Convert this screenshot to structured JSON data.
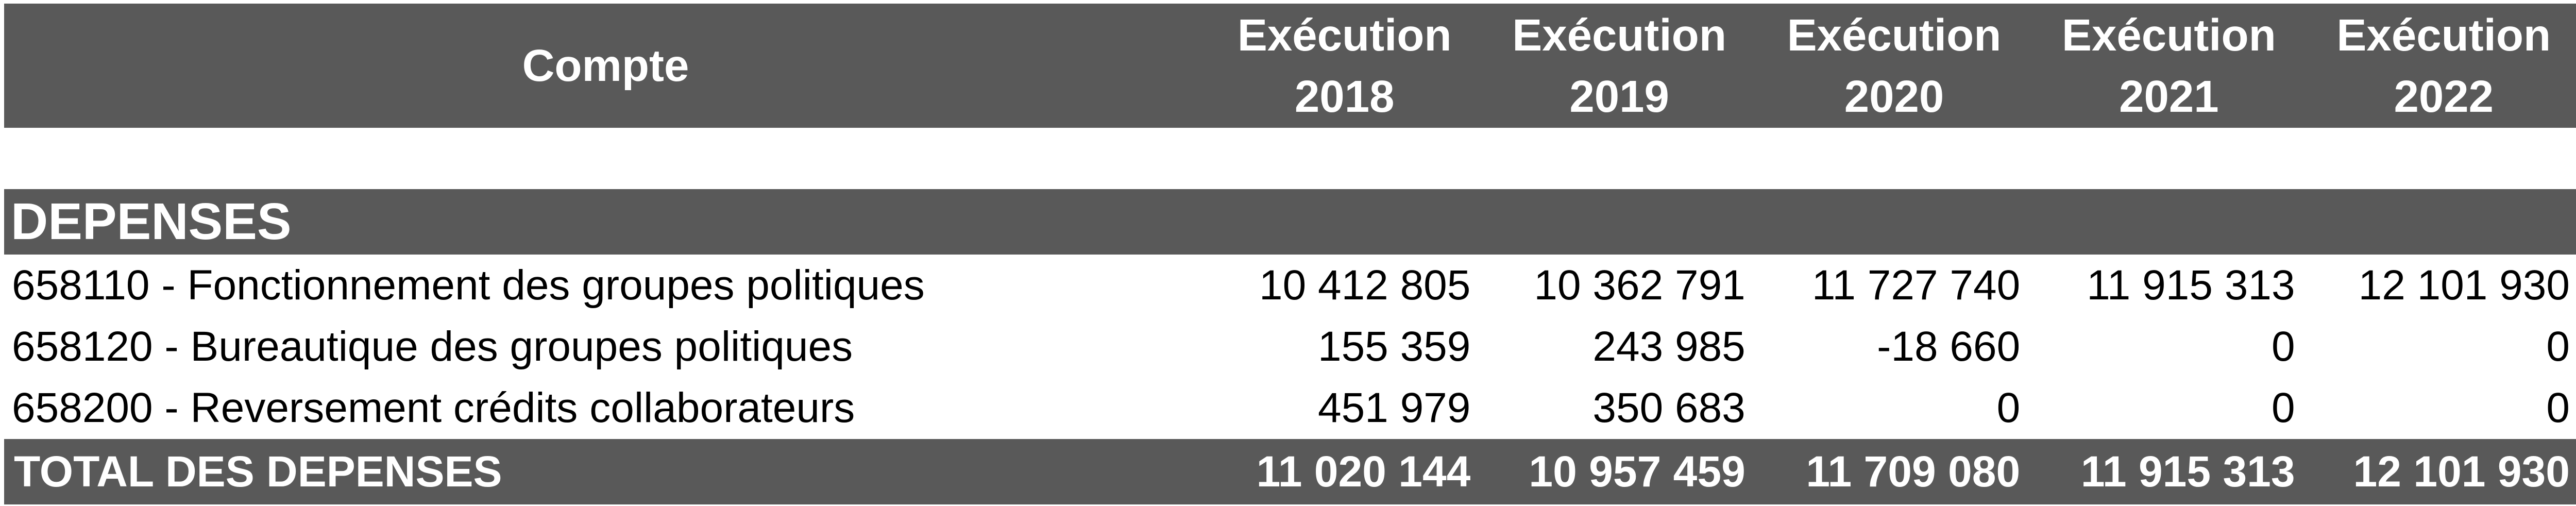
{
  "colors": {
    "band_bg": "#595959",
    "band_text": "#ffffff",
    "body_text": "#000000",
    "page_bg": "#ffffff"
  },
  "table": {
    "header": {
      "compte_label": "Compte",
      "year_columns": [
        {
          "label": "Exécution\n2018"
        },
        {
          "label": "Exécution\n2019"
        },
        {
          "label": "Exécution\n2020"
        },
        {
          "label": "Exécution\n2021"
        },
        {
          "label": "Exécution\n2022"
        }
      ]
    },
    "section": {
      "title": "DEPENSES"
    },
    "rows": [
      {
        "label": "658110 - Fonctionnement des groupes politiques",
        "values": [
          "10 412 805",
          "10 362 791",
          "11 727 740",
          "11 915 313",
          "12 101 930"
        ]
      },
      {
        "label": "658120 - Bureautique des groupes politiques",
        "values": [
          "155 359",
          "243 985",
          "-18 660",
          "0",
          "0"
        ]
      },
      {
        "label": "658200 - Reversement crédits collaborateurs",
        "values": [
          "451 979",
          "350 683",
          "0",
          "0",
          "0"
        ]
      }
    ],
    "total": {
      "label": "TOTAL DES DEPENSES",
      "values": [
        "11 020 144",
        "10 957 459",
        "11 709 080",
        "11 915 313",
        "12 101 930"
      ]
    }
  }
}
